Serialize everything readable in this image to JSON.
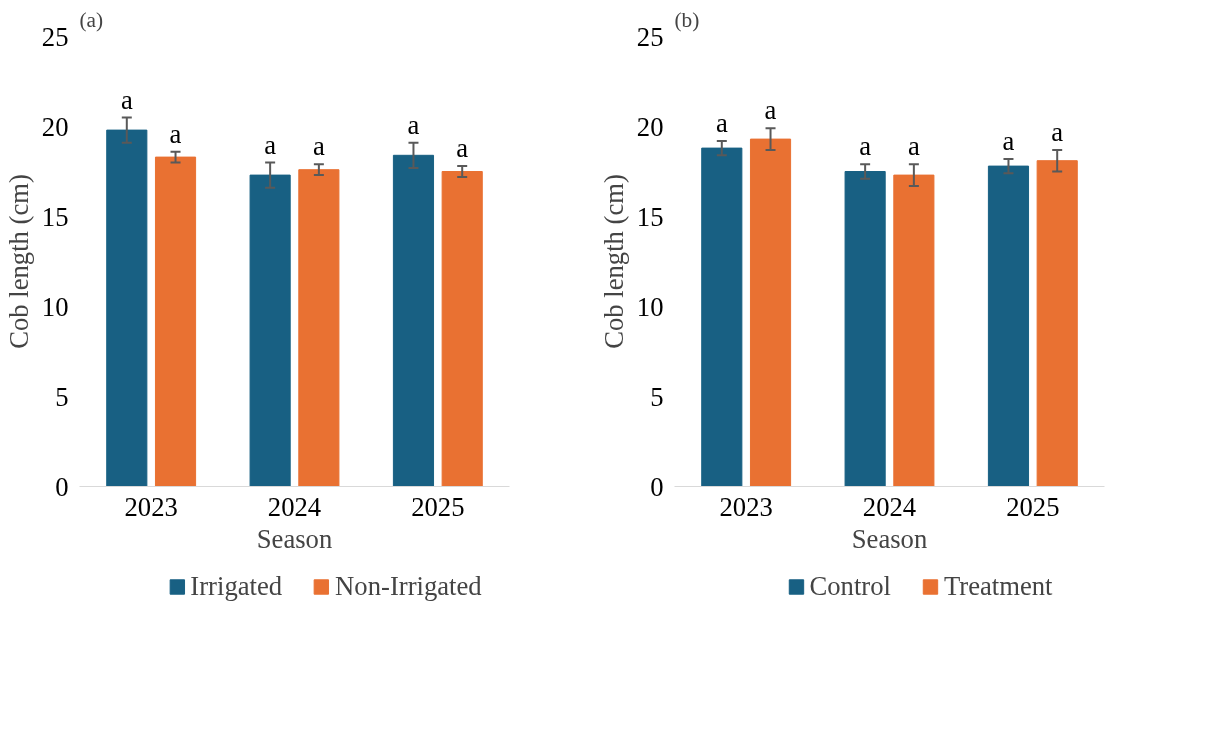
{
  "chart_data": [
    {
      "type": "bar",
      "title": "(a)",
      "xlabel": "Season",
      "ylabel": "Cob length (cm)",
      "categories": [
        "2023",
        "2024",
        "2025"
      ],
      "ylim": [
        0,
        25
      ],
      "yticks": [
        0,
        5,
        10,
        15,
        20,
        25
      ],
      "grid": false,
      "legend": "bottom",
      "series": [
        {
          "name": "Irrigated",
          "color": "#186083",
          "values": [
            19.8,
            17.3,
            18.4
          ],
          "errors": [
            0.7,
            0.7,
            0.7
          ],
          "value_labels": [
            "a",
            "a",
            "a"
          ]
        },
        {
          "name": "Non-Irrigated",
          "color": "#e97132",
          "values": [
            18.3,
            17.6,
            17.5
          ],
          "errors": [
            0.3,
            0.3,
            0.3
          ],
          "value_labels": [
            "a",
            "a",
            "a"
          ]
        }
      ]
    },
    {
      "type": "bar",
      "title": "(b)",
      "xlabel": "Season",
      "ylabel": "Cob length (cm)",
      "categories": [
        "2023",
        "2024",
        "2025"
      ],
      "ylim": [
        0,
        25
      ],
      "yticks": [
        0,
        5,
        10,
        15,
        20,
        25
      ],
      "grid": false,
      "legend": "bottom",
      "series": [
        {
          "name": "Control",
          "color": "#186083",
          "values": [
            18.8,
            17.5,
            17.8
          ],
          "errors": [
            0.4,
            0.4,
            0.4
          ],
          "value_labels": [
            "a",
            "a",
            "a"
          ]
        },
        {
          "name": "Treatment",
          "color": "#e97132",
          "values": [
            19.3,
            17.3,
            18.1
          ],
          "errors": [
            0.6,
            0.6,
            0.6
          ],
          "value_labels": [
            "a",
            "a",
            "a"
          ]
        }
      ]
    }
  ]
}
